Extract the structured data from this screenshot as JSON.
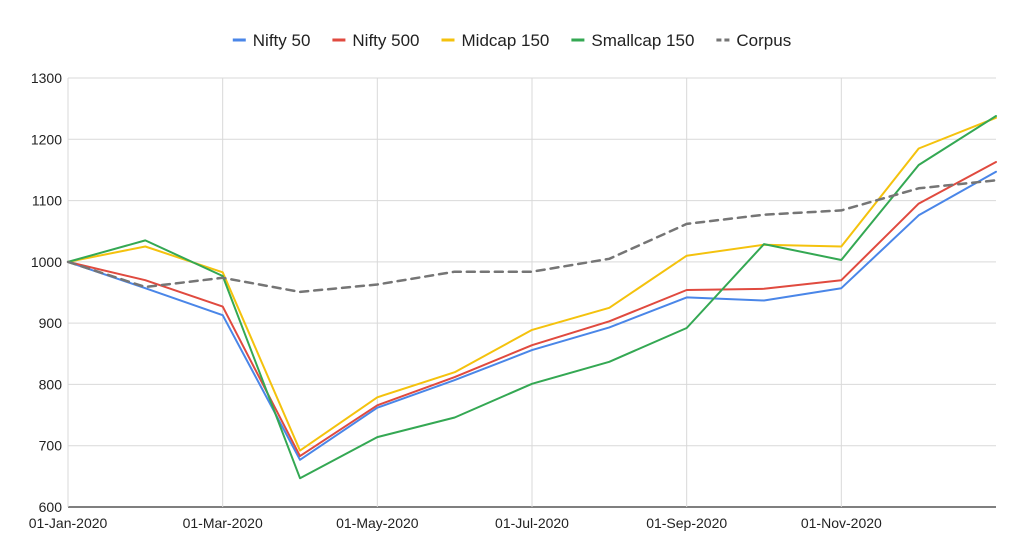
{
  "chart_data": {
    "type": "line",
    "x": [
      "01-Jan-2020",
      "01-Feb-2020",
      "01-Mar-2020",
      "01-Apr-2020",
      "01-May-2020",
      "01-Jun-2020",
      "01-Jul-2020",
      "01-Aug-2020",
      "01-Sep-2020",
      "01-Oct-2020",
      "01-Nov-2020",
      "01-Dec-2020",
      "01-Jan-2021"
    ],
    "x_tick_labels": [
      "01-Jan-2020",
      "01-Mar-2020",
      "01-May-2020",
      "01-Jul-2020",
      "01-Sep-2020",
      "01-Nov-2020"
    ],
    "ylim": [
      600,
      1300
    ],
    "y_ticks": [
      600,
      700,
      800,
      900,
      1000,
      1100,
      1200,
      1300
    ],
    "grid": true,
    "legend_position": "top",
    "series": [
      {
        "name": "Nifty 50",
        "color": "#4a86e8",
        "dashed": false,
        "values": [
          1000,
          957,
          913,
          677,
          762,
          807,
          856,
          893,
          942,
          937,
          957,
          1076,
          1147
        ]
      },
      {
        "name": "Nifty 500",
        "color": "#e04a3f",
        "dashed": false,
        "values": [
          1000,
          970,
          927,
          683,
          766,
          812,
          864,
          903,
          954,
          956,
          970,
          1095,
          1163
        ]
      },
      {
        "name": "Midcap 150",
        "color": "#f4c20d",
        "dashed": false,
        "values": [
          1000,
          1025,
          983,
          692,
          779,
          820,
          889,
          925,
          1010,
          1028,
          1025,
          1185,
          1235
        ]
      },
      {
        "name": "Smallcap 150",
        "color": "#34a853",
        "dashed": false,
        "values": [
          1000,
          1035,
          977,
          647,
          714,
          746,
          801,
          837,
          892,
          1029,
          1003,
          1158,
          1238
        ]
      },
      {
        "name": "Corpus",
        "color": "#757575",
        "dashed": true,
        "values": [
          1000,
          959,
          974,
          951,
          963,
          984,
          984,
          1005,
          1062,
          1077,
          1084,
          1120,
          1133
        ]
      }
    ]
  }
}
